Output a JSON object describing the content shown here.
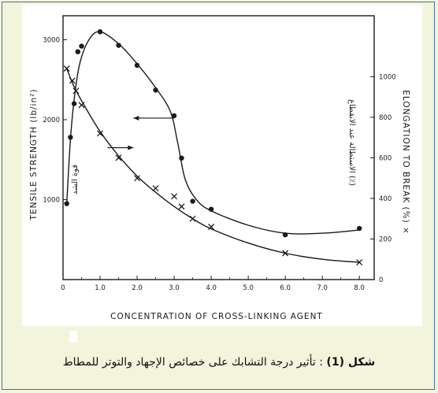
{
  "figure": {
    "caption_label": "شكل (1)",
    "caption_text": ": تأثير درجة التشابك على خصائص الإجهاد والتوتر للمطاط"
  },
  "chart_data": {
    "type": "line",
    "xlabel": "CONCENTRATION OF CROSS-LINKING AGENT",
    "ylabel_left": "TENSILE STRENGTH (lb/in²)",
    "ylabel_right": "ELONGATION TO BREAK (%) ×",
    "ylabel_left_ar": "قوة الشد",
    "ylabel_right_ar": "الاستطالة عند الانقطاع (٪)",
    "xlim": [
      0,
      8.4
    ],
    "ylim_left": [
      0,
      3300
    ],
    "ylim_right": [
      0,
      1300
    ],
    "x_ticks": [
      "0",
      "1.0",
      "2.0",
      "3.0",
      "4.0",
      "5.0",
      "6.0",
      "7.0",
      "8.0"
    ],
    "y_left_ticks": [
      1000,
      2000,
      3000
    ],
    "y_right_ticks": [
      0,
      200,
      400,
      600,
      800,
      1000
    ],
    "series": [
      {
        "marker": "dot",
        "axis": "left",
        "points": [
          {
            "x": 0.1,
            "y": 950
          },
          {
            "x": 0.2,
            "y": 1780
          },
          {
            "x": 0.3,
            "y": 2200
          },
          {
            "x": 0.4,
            "y": 2850
          },
          {
            "x": 0.5,
            "y": 2920
          },
          {
            "x": 1.0,
            "y": 3100
          },
          {
            "x": 1.5,
            "y": 2930
          },
          {
            "x": 2.0,
            "y": 2680
          },
          {
            "x": 2.5,
            "y": 2370
          },
          {
            "x": 3.0,
            "y": 2050
          },
          {
            "x": 3.2,
            "y": 1520
          },
          {
            "x": 3.5,
            "y": 980
          },
          {
            "x": 4.0,
            "y": 880
          },
          {
            "x": 6.0,
            "y": 560
          },
          {
            "x": 8.0,
            "y": 640
          }
        ],
        "curve": [
          {
            "x": 0.1,
            "y": 950
          },
          {
            "x": 0.2,
            "y": 1750
          },
          {
            "x": 0.3,
            "y": 2250
          },
          {
            "x": 0.45,
            "y": 2700
          },
          {
            "x": 0.7,
            "y": 3000
          },
          {
            "x": 1.0,
            "y": 3100
          },
          {
            "x": 1.5,
            "y": 2950
          },
          {
            "x": 2.0,
            "y": 2700
          },
          {
            "x": 2.5,
            "y": 2400
          },
          {
            "x": 2.9,
            "y": 2100
          },
          {
            "x": 3.1,
            "y": 1700
          },
          {
            "x": 3.3,
            "y": 1250
          },
          {
            "x": 3.6,
            "y": 1000
          },
          {
            "x": 4.0,
            "y": 860
          },
          {
            "x": 5.0,
            "y": 680
          },
          {
            "x": 6.0,
            "y": 580
          },
          {
            "x": 7.0,
            "y": 580
          },
          {
            "x": 8.0,
            "y": 620
          }
        ]
      },
      {
        "marker": "cross",
        "axis": "right",
        "points": [
          {
            "x": 0.1,
            "y": 1040
          },
          {
            "x": 0.25,
            "y": 980
          },
          {
            "x": 0.35,
            "y": 930
          },
          {
            "x": 0.5,
            "y": 860
          },
          {
            "x": 1.0,
            "y": 720
          },
          {
            "x": 1.5,
            "y": 600
          },
          {
            "x": 2.0,
            "y": 500
          },
          {
            "x": 2.5,
            "y": 450
          },
          {
            "x": 3.0,
            "y": 410
          },
          {
            "x": 3.2,
            "y": 360
          },
          {
            "x": 3.5,
            "y": 300
          },
          {
            "x": 4.0,
            "y": 260
          },
          {
            "x": 6.0,
            "y": 130
          },
          {
            "x": 8.0,
            "y": 85
          }
        ],
        "curve": [
          {
            "x": 0.1,
            "y": 1040
          },
          {
            "x": 0.3,
            "y": 950
          },
          {
            "x": 0.6,
            "y": 850
          },
          {
            "x": 1.0,
            "y": 730
          },
          {
            "x": 1.5,
            "y": 610
          },
          {
            "x": 2.0,
            "y": 510
          },
          {
            "x": 2.5,
            "y": 430
          },
          {
            "x": 3.0,
            "y": 360
          },
          {
            "x": 3.5,
            "y": 300
          },
          {
            "x": 4.0,
            "y": 250
          },
          {
            "x": 5.0,
            "y": 180
          },
          {
            "x": 6.0,
            "y": 130
          },
          {
            "x": 7.0,
            "y": 100
          },
          {
            "x": 8.0,
            "y": 85
          }
        ]
      }
    ],
    "annotations": [
      {
        "type": "arrow",
        "direction": "left",
        "x_from": 3.0,
        "x_to": 1.9,
        "y": 2020,
        "axis": "left"
      },
      {
        "type": "arrow",
        "direction": "right",
        "x_from": 1.2,
        "x_to": 1.9,
        "y": 650,
        "axis": "right"
      }
    ],
    "grid": false,
    "legend": "none"
  }
}
